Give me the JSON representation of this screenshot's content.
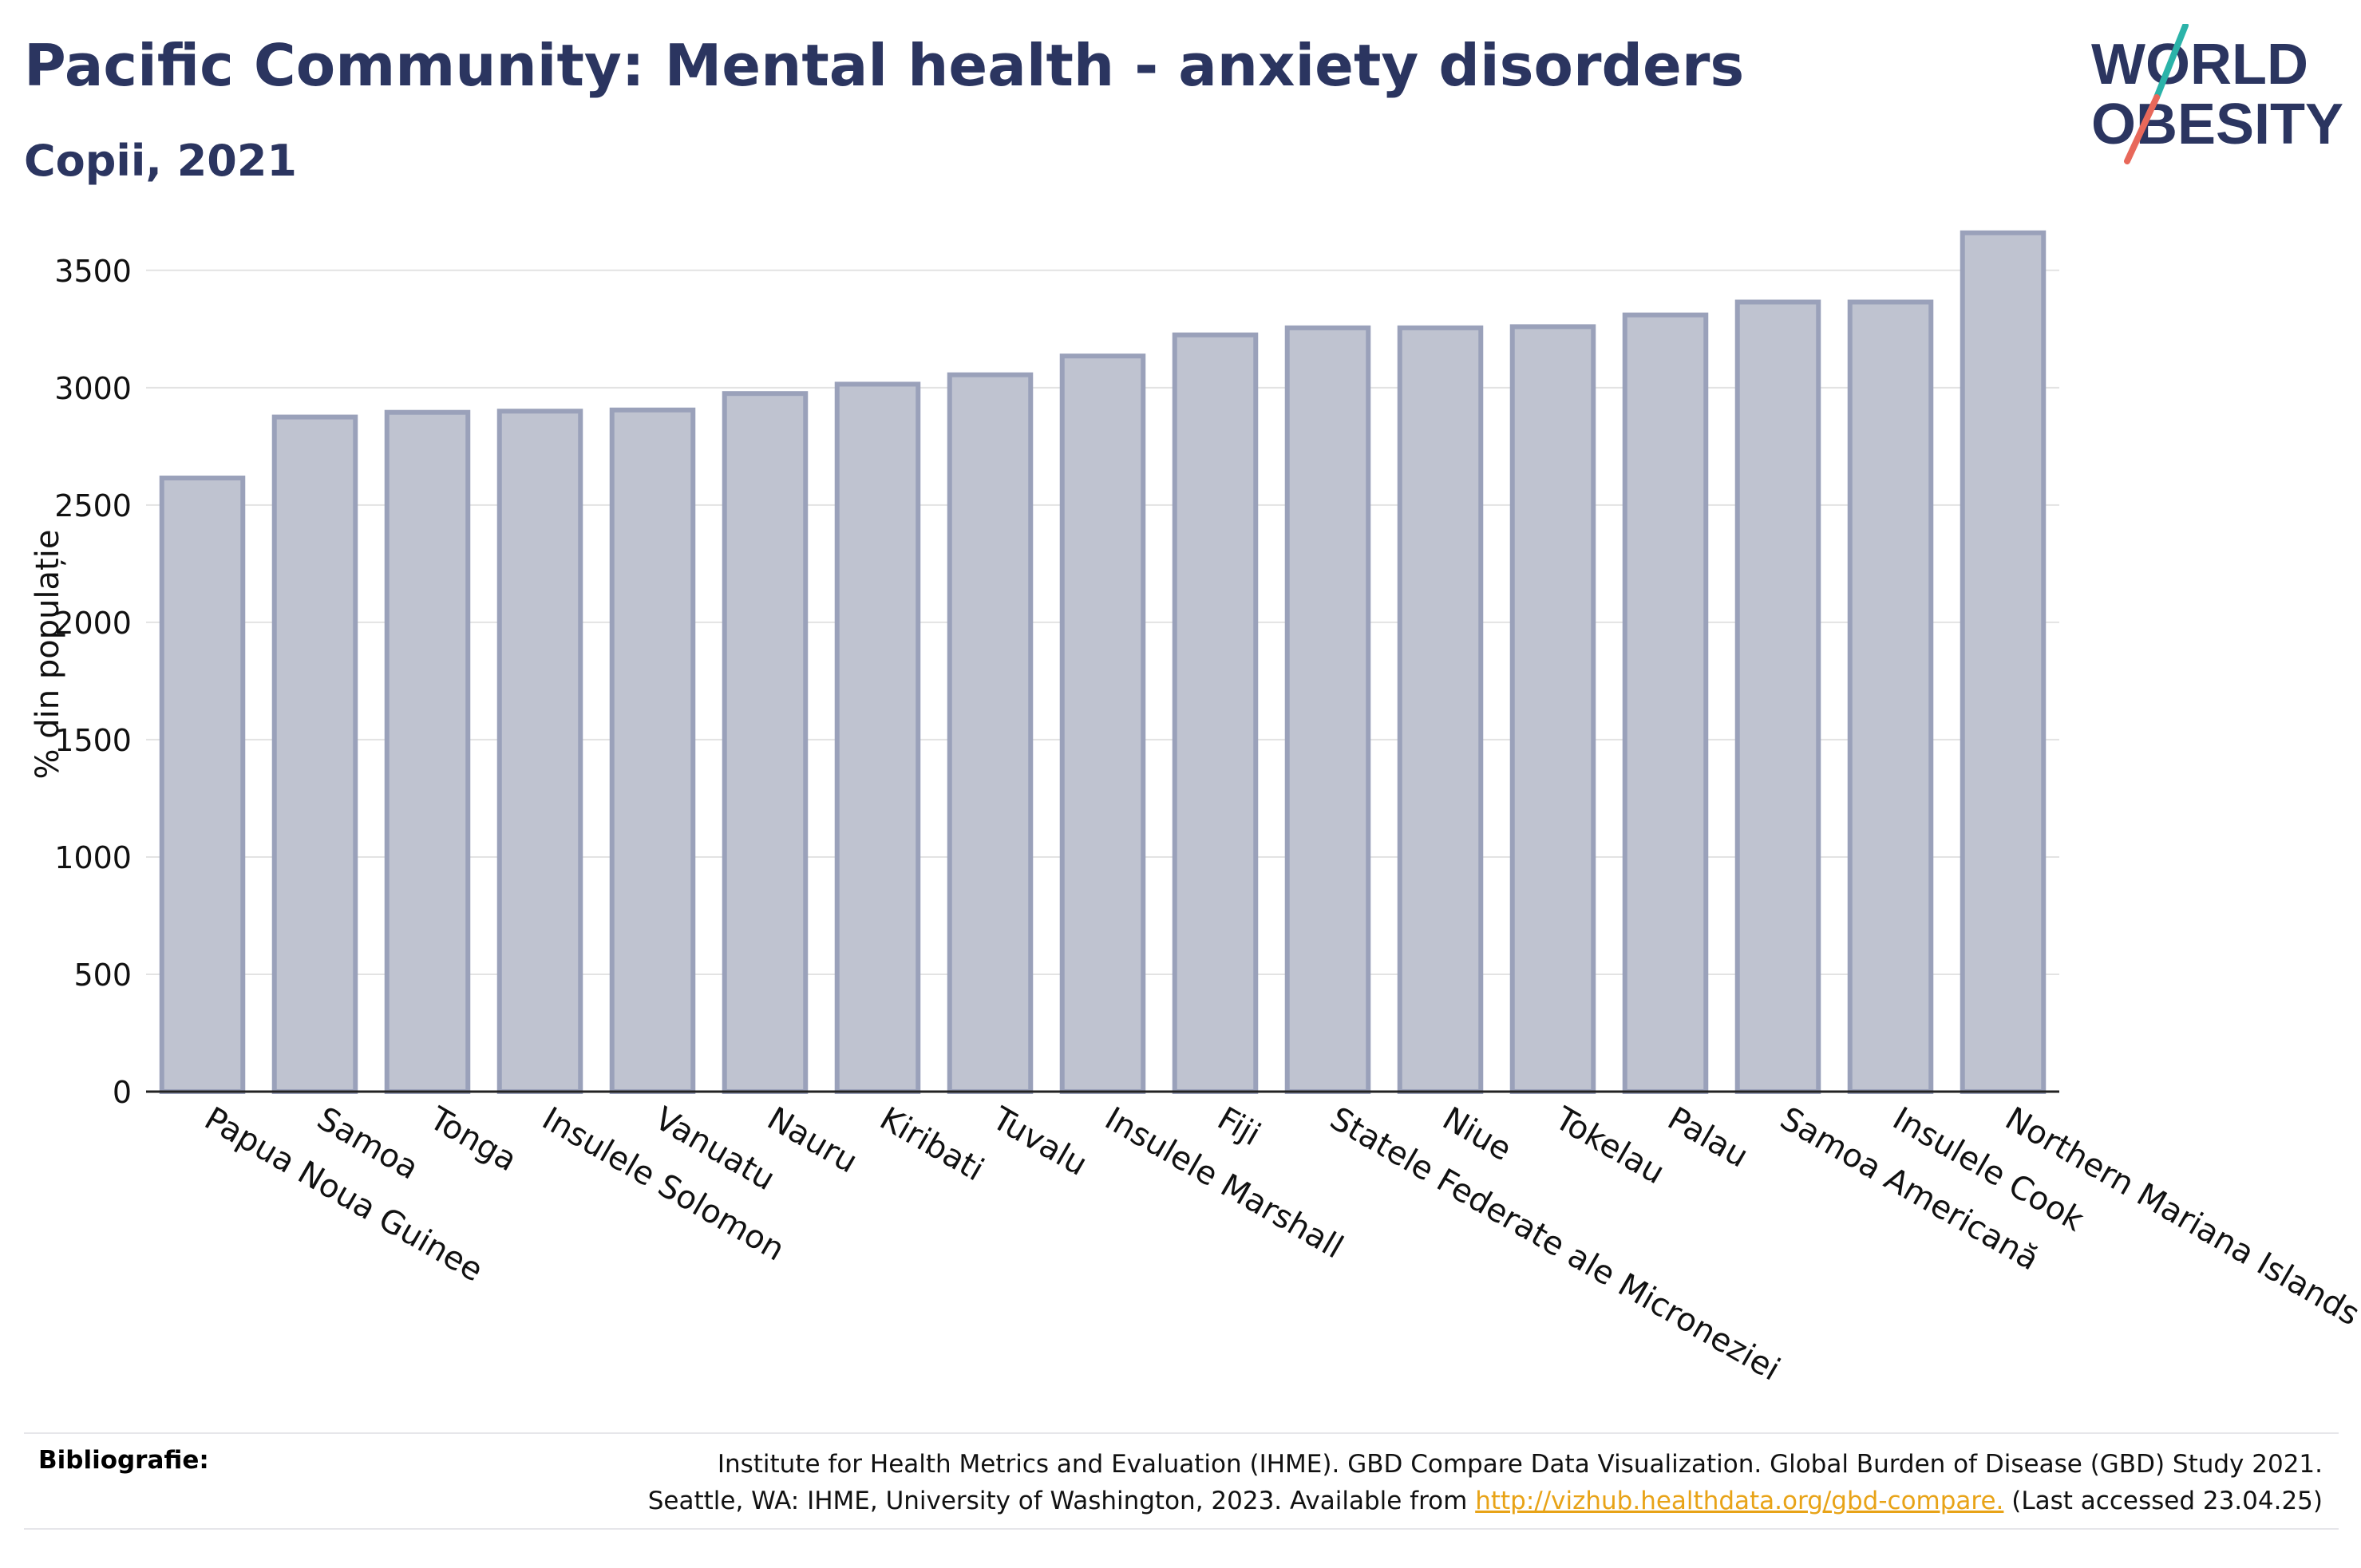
{
  "title": "Pacific Community: Mental health - anxiety disorders",
  "subtitle": "Copii, 2021",
  "logo": {
    "line1": "WORLD",
    "line2": "OBESITY"
  },
  "colors": {
    "title": "#2b3560",
    "bar_fill": "#bfc3d0",
    "bar_stroke": "#9aa1ba",
    "logo_slash_top": "#2bb3a9",
    "logo_slash_bottom": "#e8685a",
    "link": "#e8a317"
  },
  "chart_data": {
    "type": "bar",
    "ylabel": "% din populație",
    "ylim": [
      0,
      3700
    ],
    "yticks": [
      0,
      500,
      1000,
      1500,
      2000,
      2500,
      3000,
      3500
    ],
    "grid": true,
    "categories": [
      "Papua Noua Guinee",
      "Samoa",
      "Tonga",
      "Insulele Solomon",
      "Vanuatu",
      "Nauru",
      "Kiribati",
      "Tuvalu",
      "Insulele Marshall",
      "Fiji",
      "Statele Federate ale Microneziei",
      "Niue",
      "Tokelau",
      "Palau",
      "Samoa Americană",
      "Insulele Cook",
      "Northern Mariana Islands"
    ],
    "values": [
      2615,
      2875,
      2895,
      2900,
      2905,
      2975,
      3015,
      3055,
      3135,
      3225,
      3255,
      3255,
      3260,
      3310,
      3365,
      3365,
      3660
    ]
  },
  "footer": {
    "label": "Bibliografie:",
    "line1": "Institute for Health Metrics and Evaluation (IHME). GBD Compare Data Visualization. Global Burden of Disease (GBD) Study 2021.",
    "line2_before": "Seattle, WA: IHME, University of Washington, 2023. Available from",
    "link": "http://vizhub.healthdata.org/gbd-compare.",
    "line2_after": "(Last accessed 23.04.25)"
  }
}
